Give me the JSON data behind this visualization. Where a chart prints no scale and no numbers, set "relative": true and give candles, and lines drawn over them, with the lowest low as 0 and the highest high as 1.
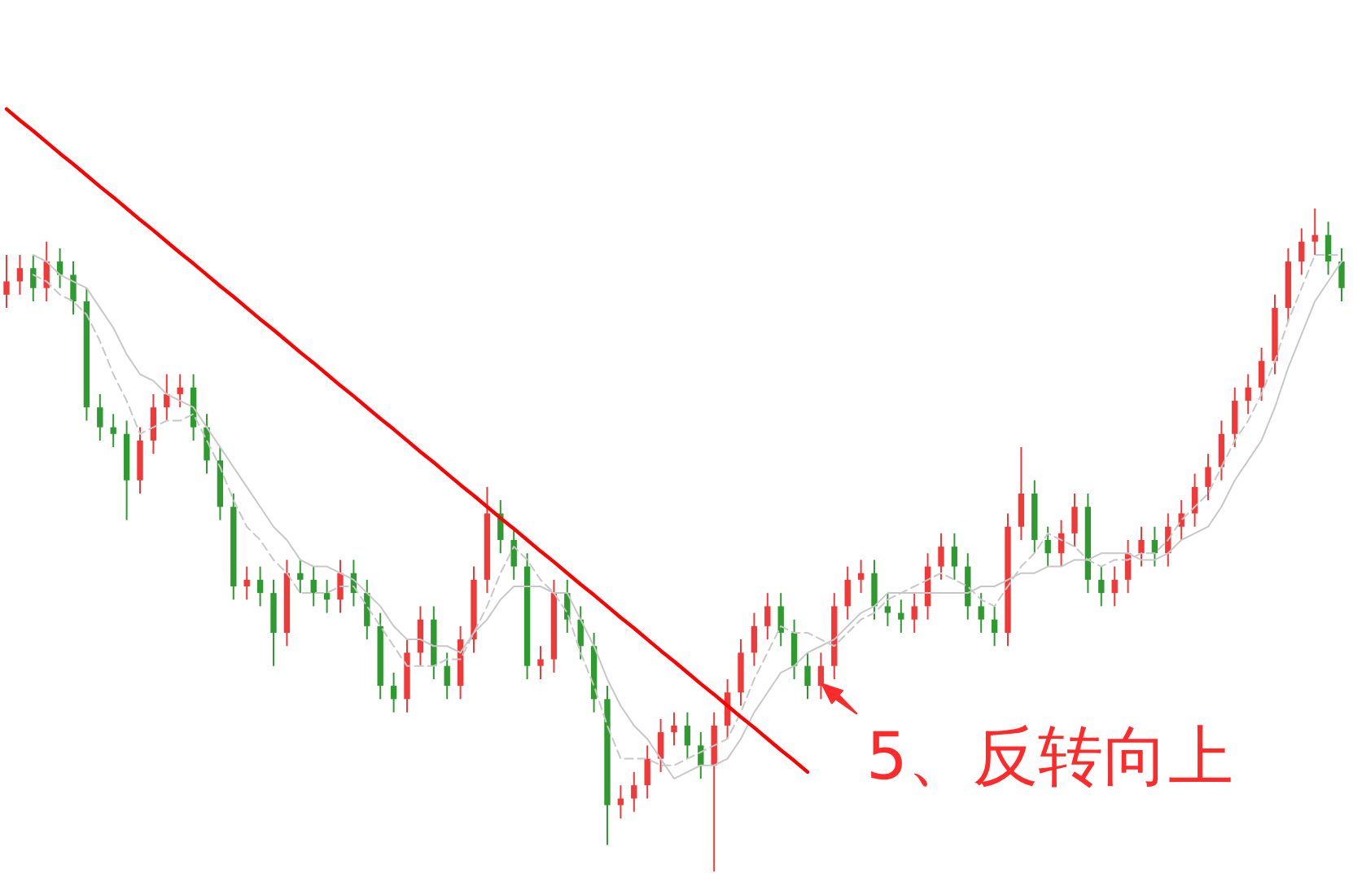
{
  "chart_data": {
    "type": "candlestick",
    "relative": true,
    "marker": "none",
    "tick_labels": false,
    "categories": [
      null,
      null,
      null,
      null,
      null,
      null,
      null,
      null,
      null,
      null,
      null,
      null,
      null,
      null,
      null,
      null,
      null,
      null,
      null,
      null,
      null,
      null,
      null,
      null,
      null,
      null,
      null,
      null,
      null,
      null,
      null,
      null,
      null,
      null,
      null,
      null,
      null,
      null,
      null,
      null,
      null,
      null,
      null,
      null,
      null,
      null,
      null,
      null,
      null,
      null,
      null,
      null,
      null,
      null,
      null,
      null,
      null,
      null,
      null,
      null,
      null,
      null,
      null,
      null,
      null,
      null,
      null,
      null,
      null,
      null,
      null,
      null,
      null,
      null,
      null,
      null,
      null,
      null,
      null,
      null,
      null,
      null,
      null,
      null,
      null,
      null,
      null,
      null,
      null,
      null,
      null,
      null,
      null,
      null,
      null,
      null,
      null,
      null,
      null,
      null,
      null
    ],
    "ohlc": [
      [
        0.87,
        0.93,
        0.85,
        0.89
      ],
      [
        0.89,
        0.93,
        0.87,
        0.91
      ],
      [
        0.91,
        0.93,
        0.86,
        0.88
      ],
      [
        0.88,
        0.95,
        0.86,
        0.92
      ],
      [
        0.92,
        0.94,
        0.88,
        0.9
      ],
      [
        0.9,
        0.92,
        0.84,
        0.86
      ],
      [
        0.86,
        0.88,
        0.68,
        0.7
      ],
      [
        0.7,
        0.72,
        0.65,
        0.67
      ],
      [
        0.67,
        0.69,
        0.64,
        0.66
      ],
      [
        0.66,
        0.68,
        0.53,
        0.59
      ],
      [
        0.59,
        0.67,
        0.57,
        0.65
      ],
      [
        0.65,
        0.72,
        0.63,
        0.7
      ],
      [
        0.7,
        0.75,
        0.68,
        0.72
      ],
      [
        0.72,
        0.75,
        0.7,
        0.73
      ],
      [
        0.73,
        0.75,
        0.65,
        0.67
      ],
      [
        0.67,
        0.69,
        0.6,
        0.62
      ],
      [
        0.62,
        0.64,
        0.53,
        0.55
      ],
      [
        0.55,
        0.57,
        0.41,
        0.43
      ],
      [
        0.43,
        0.46,
        0.41,
        0.44
      ],
      [
        0.44,
        0.46,
        0.4,
        0.42
      ],
      [
        0.42,
        0.44,
        0.31,
        0.36
      ],
      [
        0.36,
        0.47,
        0.34,
        0.45
      ],
      [
        0.45,
        0.47,
        0.42,
        0.44
      ],
      [
        0.44,
        0.46,
        0.4,
        0.42
      ],
      [
        0.42,
        0.44,
        0.39,
        0.41
      ],
      [
        0.41,
        0.47,
        0.39,
        0.45
      ],
      [
        0.45,
        0.47,
        0.4,
        0.42
      ],
      [
        0.42,
        0.44,
        0.35,
        0.37
      ],
      [
        0.37,
        0.39,
        0.26,
        0.28
      ],
      [
        0.28,
        0.3,
        0.24,
        0.26
      ],
      [
        0.26,
        0.35,
        0.24,
        0.33
      ],
      [
        0.33,
        0.4,
        0.31,
        0.38
      ],
      [
        0.38,
        0.4,
        0.29,
        0.31
      ],
      [
        0.31,
        0.33,
        0.26,
        0.28
      ],
      [
        0.28,
        0.37,
        0.26,
        0.35
      ],
      [
        0.35,
        0.46,
        0.33,
        0.44
      ],
      [
        0.44,
        0.58,
        0.42,
        0.54
      ],
      [
        0.54,
        0.56,
        0.48,
        0.5
      ],
      [
        0.5,
        0.52,
        0.44,
        0.46
      ],
      [
        0.46,
        0.48,
        0.29,
        0.31
      ],
      [
        0.31,
        0.34,
        0.29,
        0.32
      ],
      [
        0.32,
        0.44,
        0.3,
        0.42
      ],
      [
        0.42,
        0.44,
        0.36,
        0.38
      ],
      [
        0.38,
        0.4,
        0.32,
        0.34
      ],
      [
        0.34,
        0.36,
        0.24,
        0.26
      ],
      [
        0.26,
        0.28,
        0.04,
        0.1
      ],
      [
        0.1,
        0.13,
        0.08,
        0.11
      ],
      [
        0.11,
        0.15,
        0.09,
        0.13
      ],
      [
        0.13,
        0.19,
        0.11,
        0.17
      ],
      [
        0.17,
        0.23,
        0.15,
        0.21
      ],
      [
        0.21,
        0.24,
        0.19,
        0.22
      ],
      [
        0.22,
        0.24,
        0.17,
        0.19
      ],
      [
        0.19,
        0.21,
        0.14,
        0.16
      ],
      [
        0.16,
        0.24,
        0.0,
        0.22
      ],
      [
        0.22,
        0.29,
        0.2,
        0.27
      ],
      [
        0.27,
        0.35,
        0.25,
        0.33
      ],
      [
        0.33,
        0.39,
        0.31,
        0.37
      ],
      [
        0.37,
        0.42,
        0.35,
        0.4
      ],
      [
        0.4,
        0.42,
        0.34,
        0.36
      ],
      [
        0.36,
        0.38,
        0.29,
        0.31
      ],
      [
        0.31,
        0.33,
        0.26,
        0.28
      ],
      [
        0.28,
        0.33,
        0.26,
        0.31
      ],
      [
        0.31,
        0.42,
        0.29,
        0.4
      ],
      [
        0.4,
        0.46,
        0.38,
        0.44
      ],
      [
        0.44,
        0.47,
        0.42,
        0.45
      ],
      [
        0.45,
        0.47,
        0.38,
        0.4
      ],
      [
        0.4,
        0.42,
        0.37,
        0.39
      ],
      [
        0.39,
        0.41,
        0.36,
        0.38
      ],
      [
        0.38,
        0.42,
        0.36,
        0.4
      ],
      [
        0.4,
        0.48,
        0.38,
        0.46
      ],
      [
        0.46,
        0.51,
        0.44,
        0.49
      ],
      [
        0.49,
        0.51,
        0.44,
        0.46
      ],
      [
        0.46,
        0.48,
        0.38,
        0.4
      ],
      [
        0.4,
        0.42,
        0.36,
        0.38
      ],
      [
        0.38,
        0.4,
        0.34,
        0.36
      ],
      [
        0.36,
        0.54,
        0.34,
        0.52
      ],
      [
        0.52,
        0.64,
        0.5,
        0.57
      ],
      [
        0.57,
        0.59,
        0.48,
        0.5
      ],
      [
        0.5,
        0.52,
        0.46,
        0.48
      ],
      [
        0.48,
        0.53,
        0.46,
        0.51
      ],
      [
        0.51,
        0.57,
        0.49,
        0.55
      ],
      [
        0.55,
        0.57,
        0.42,
        0.44
      ],
      [
        0.44,
        0.46,
        0.4,
        0.42
      ],
      [
        0.42,
        0.46,
        0.4,
        0.44
      ],
      [
        0.44,
        0.5,
        0.42,
        0.48
      ],
      [
        0.48,
        0.52,
        0.46,
        0.5
      ],
      [
        0.5,
        0.52,
        0.46,
        0.48
      ],
      [
        0.48,
        0.54,
        0.46,
        0.52
      ],
      [
        0.52,
        0.56,
        0.5,
        0.54
      ],
      [
        0.54,
        0.6,
        0.52,
        0.58
      ],
      [
        0.58,
        0.63,
        0.56,
        0.61
      ],
      [
        0.61,
        0.68,
        0.59,
        0.66
      ],
      [
        0.66,
        0.73,
        0.64,
        0.71
      ],
      [
        0.71,
        0.75,
        0.69,
        0.73
      ],
      [
        0.73,
        0.79,
        0.71,
        0.77
      ],
      [
        0.77,
        0.87,
        0.75,
        0.85
      ],
      [
        0.85,
        0.94,
        0.83,
        0.92
      ],
      [
        0.92,
        0.97,
        0.9,
        0.95
      ],
      [
        0.95,
        1.0,
        0.93,
        0.96
      ],
      [
        0.96,
        0.98,
        0.9,
        0.92
      ],
      [
        0.92,
        0.94,
        0.86,
        0.88
      ]
    ],
    "series": [
      {
        "type": "line",
        "color": "#c8c8c8",
        "line_style": "solid",
        "values": [
          null,
          null,
          0.93,
          0.92,
          0.9,
          0.89,
          0.88,
          0.85,
          0.82,
          0.78,
          0.75,
          0.74,
          0.72,
          0.71,
          0.7,
          0.67,
          0.64,
          0.61,
          0.58,
          0.55,
          0.52,
          0.5,
          0.47,
          0.46,
          0.46,
          0.45,
          0.44,
          0.42,
          0.4,
          0.37,
          0.35,
          0.35,
          0.34,
          0.34,
          0.33,
          0.36,
          0.38,
          0.41,
          0.43,
          0.43,
          0.43,
          0.42,
          0.42,
          0.38,
          0.34,
          0.29,
          0.25,
          0.22,
          0.2,
          0.17,
          0.14,
          0.15,
          0.16,
          0.16,
          0.17,
          0.2,
          0.24,
          0.27,
          0.3,
          0.31,
          0.33,
          0.34,
          0.35,
          0.37,
          0.39,
          0.4,
          0.42,
          0.42,
          0.42,
          0.42,
          0.42,
          0.42,
          0.42,
          0.43,
          0.43,
          0.44,
          0.45,
          0.45,
          0.46,
          0.46,
          0.47,
          0.47,
          0.48,
          0.48,
          0.48,
          0.47,
          0.47,
          0.48,
          0.5,
          0.51,
          0.52,
          0.55,
          0.59,
          0.62,
          0.65,
          0.7,
          0.76,
          0.81,
          0.86,
          0.89,
          0.92
        ]
      },
      {
        "type": "line",
        "color": "#c8c8c8",
        "line_style": "dashed",
        "values": [
          null,
          null,
          0.9,
          0.89,
          0.87,
          0.86,
          0.84,
          0.8,
          0.75,
          0.71,
          0.66,
          0.67,
          0.68,
          0.68,
          0.69,
          0.65,
          0.61,
          0.56,
          0.52,
          0.5,
          0.47,
          0.45,
          0.42,
          0.42,
          0.42,
          0.43,
          0.43,
          0.4,
          0.37,
          0.34,
          0.31,
          0.31,
          0.31,
          0.32,
          0.32,
          0.36,
          0.4,
          0.45,
          0.49,
          0.47,
          0.44,
          0.42,
          0.39,
          0.33,
          0.28,
          0.22,
          0.17,
          0.17,
          0.17,
          0.16,
          0.16,
          0.17,
          0.18,
          0.19,
          0.2,
          0.24,
          0.29,
          0.33,
          0.37,
          0.36,
          0.36,
          0.35,
          0.34,
          0.36,
          0.38,
          0.39,
          0.41,
          0.42,
          0.43,
          0.44,
          0.45,
          0.44,
          0.43,
          0.41,
          0.4,
          0.43,
          0.46,
          0.48,
          0.51,
          0.5,
          0.49,
          0.47,
          0.46,
          0.47,
          0.47,
          0.48,
          0.48,
          0.5,
          0.53,
          0.55,
          0.57,
          0.61,
          0.65,
          0.68,
          0.72,
          0.77,
          0.83,
          0.88,
          0.93,
          0.93,
          0.93
        ]
      },
      {
        "type": "line",
        "color": "#ff0000",
        "line_style": "solid",
        "values": [
          1.15,
          1.133,
          1.117,
          1.1,
          1.083,
          1.067,
          1.05,
          1.033,
          1.017,
          1.0,
          0.983,
          0.967,
          0.95,
          0.933,
          0.917,
          0.9,
          0.883,
          0.867,
          0.85,
          0.833,
          0.817,
          0.8,
          0.783,
          0.767,
          0.75,
          0.733,
          0.717,
          0.7,
          0.683,
          0.667,
          0.65,
          0.633,
          0.617,
          0.6,
          0.583,
          0.567,
          0.55,
          0.533,
          0.517,
          0.5,
          0.483,
          0.467,
          0.45,
          0.433,
          0.417,
          0.4,
          0.383,
          0.367,
          0.35,
          0.333,
          0.317,
          0.3,
          0.283,
          0.267,
          0.25,
          0.233,
          0.217,
          0.2,
          0.183,
          0.167,
          0.15,
          null,
          null,
          null,
          null,
          null,
          null,
          null,
          null,
          null,
          null,
          null,
          null,
          null,
          null,
          null,
          null,
          null,
          null,
          null,
          null,
          null,
          null,
          null,
          null,
          null,
          null,
          null,
          null,
          null,
          null,
          null,
          null,
          null,
          null,
          null,
          null,
          null,
          null,
          null,
          null
        ]
      }
    ],
    "annotations": [
      "5、反转向上"
    ]
  }
}
